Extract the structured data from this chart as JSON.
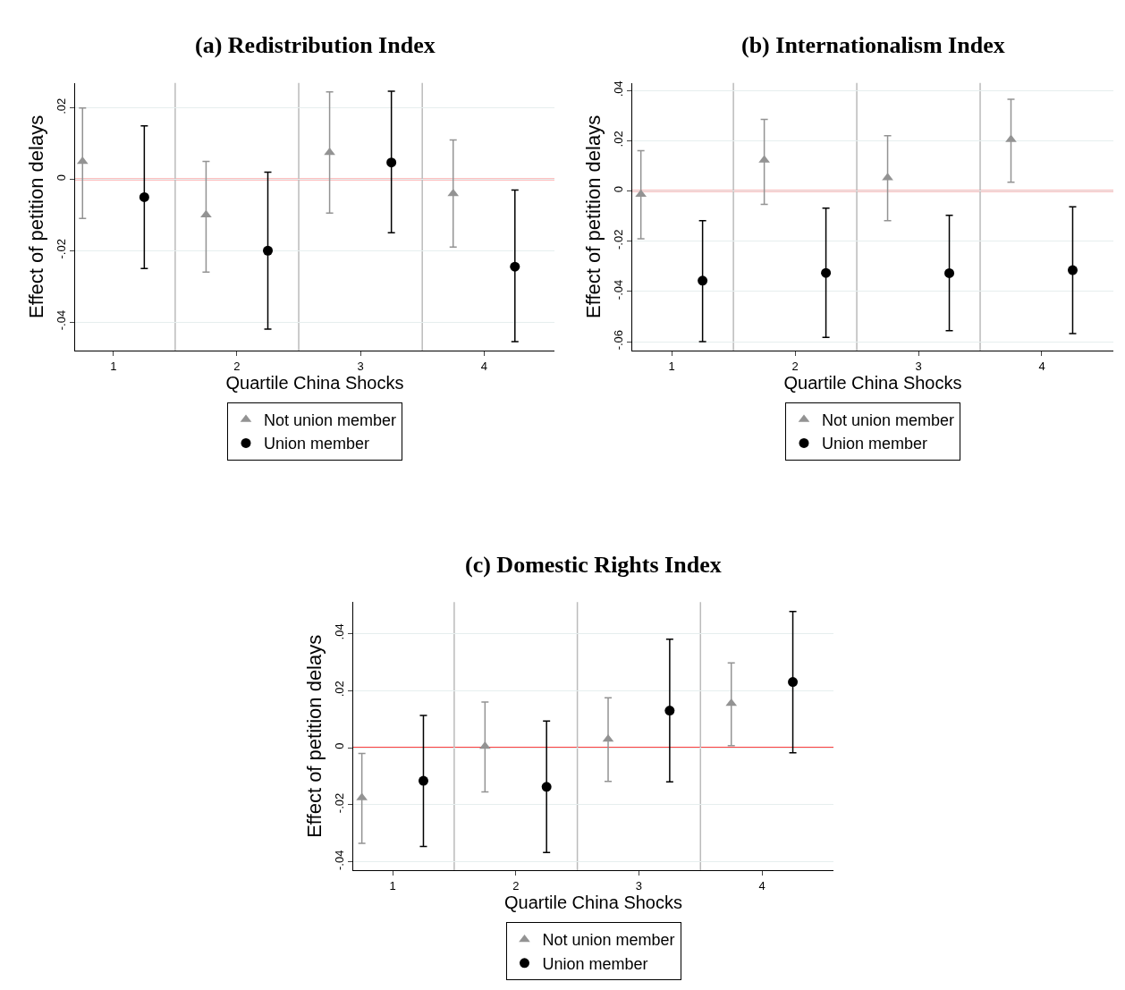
{
  "chart_data": [
    {
      "type": "scatter",
      "title": "(a) Redistribution Index",
      "xlabel": "Quartile China Shocks",
      "ylabel": "Effect of petition delays",
      "xlim": [
        0.69,
        4.57
      ],
      "xticks": [
        1,
        2,
        3,
        4
      ],
      "ylim": [
        -0.048,
        0.027
      ],
      "yticks": [
        {
          "value": -0.04,
          "label": "-.04"
        },
        {
          "value": -0.02,
          "label": "-.02"
        },
        {
          "value": 0,
          "label": "0"
        },
        {
          "value": 0.02,
          "label": ".02"
        }
      ],
      "grid": "y",
      "legend": "bottom",
      "ref_lines": [
        {
          "axis": "y",
          "value": 0,
          "color": "#ff0000"
        },
        {
          "axis": "x",
          "value": 1.5,
          "color": "#bbbbbb"
        },
        {
          "axis": "x",
          "value": 2.5,
          "color": "#bbbbbb"
        },
        {
          "axis": "x",
          "value": 3.5,
          "color": "#bbbbbb"
        }
      ],
      "series": [
        {
          "name": "Not union member",
          "color": "#939393",
          "marker": "triangle",
          "x": [
            0.75,
            1.75,
            2.75,
            3.75
          ],
          "values": [
            0.005,
            -0.01,
            0.0075,
            -0.004
          ],
          "errors": [
            [
              -0.011,
              0.02
            ],
            [
              -0.026,
              0.005
            ],
            [
              -0.0095,
              0.0245
            ],
            [
              -0.019,
              0.011
            ]
          ]
        },
        {
          "name": "Union member",
          "color": "#000000",
          "marker": "circle",
          "x": [
            1.25,
            2.25,
            3.25,
            4.25
          ],
          "values": [
            -0.005,
            -0.02,
            0.0047,
            -0.0245
          ],
          "errors": [
            [
              -0.025,
              0.015
            ],
            [
              -0.042,
              0.002
            ],
            [
              -0.015,
              0.0247
            ],
            [
              -0.0455,
              -0.003
            ]
          ]
        }
      ]
    },
    {
      "type": "scatter",
      "title": "(b) Internationalism Index",
      "xlabel": "Quartile China Shocks",
      "ylabel": "Effect of petition delays",
      "xlim": [
        0.68,
        4.58
      ],
      "xticks": [
        1,
        2,
        3,
        4
      ],
      "ylim": [
        -0.0635,
        0.043
      ],
      "yticks": [
        {
          "value": -0.06,
          "label": "-.06"
        },
        {
          "value": -0.04,
          "label": "-.04"
        },
        {
          "value": -0.02,
          "label": "-.02"
        },
        {
          "value": 0,
          "label": "0"
        },
        {
          "value": 0.02,
          "label": ".02"
        },
        {
          "value": 0.04,
          "label": ".04"
        }
      ],
      "grid": "y",
      "legend": "bottom",
      "ref_lines": [
        {
          "axis": "y",
          "value": 0,
          "color": "#ff0000"
        },
        {
          "axis": "x",
          "value": 1.5,
          "color": "#bbbbbb"
        },
        {
          "axis": "x",
          "value": 2.5,
          "color": "#bbbbbb"
        },
        {
          "axis": "x",
          "value": 3.5,
          "color": "#bbbbbb"
        }
      ],
      "series": [
        {
          "name": "Not union member",
          "color": "#939393",
          "marker": "triangle",
          "x": [
            0.75,
            1.75,
            2.75,
            3.75
          ],
          "values": [
            -0.0013,
            0.0123,
            0.0053,
            0.0205
          ],
          "errors": [
            [
              -0.019,
              0.016
            ],
            [
              -0.0053,
              0.0285
            ],
            [
              -0.0118,
              0.022
            ],
            [
              0.0035,
              0.0365
            ]
          ]
        },
        {
          "name": "Union member",
          "color": "#000000",
          "marker": "circle",
          "x": [
            1.25,
            2.25,
            3.25,
            4.25
          ],
          "values": [
            -0.0357,
            -0.0326,
            -0.0327,
            -0.0315
          ],
          "errors": [
            [
              -0.06,
              -0.0118
            ],
            [
              -0.0583,
              -0.0068
            ],
            [
              -0.0556,
              -0.0097
            ],
            [
              -0.0568,
              -0.0063
            ]
          ]
        }
      ]
    },
    {
      "type": "scatter",
      "title": "(c) Domestic Rights Index",
      "xlabel": "Quartile China Shocks",
      "ylabel": "Effect of petition delays",
      "xlim": [
        0.68,
        4.58
      ],
      "xticks": [
        1,
        2,
        3,
        4
      ],
      "ylim": [
        -0.043,
        0.051
      ],
      "yticks": [
        {
          "value": -0.04,
          "label": "-.04"
        },
        {
          "value": -0.02,
          "label": "-.02"
        },
        {
          "value": 0,
          "label": "0"
        },
        {
          "value": 0.02,
          "label": ".02"
        },
        {
          "value": 0.04,
          "label": ".04"
        }
      ],
      "grid": "y",
      "legend": "bottom",
      "ref_lines": [
        {
          "axis": "y",
          "value": 0,
          "color": "#ff0000"
        },
        {
          "axis": "x",
          "value": 1.5,
          "color": "#bbbbbb"
        },
        {
          "axis": "x",
          "value": 2.5,
          "color": "#bbbbbb"
        },
        {
          "axis": "x",
          "value": 3.5,
          "color": "#bbbbbb"
        }
      ],
      "series": [
        {
          "name": "Not union member",
          "color": "#939393",
          "marker": "triangle",
          "x": [
            0.75,
            1.75,
            2.75,
            3.75
          ],
          "values": [
            -0.0175,
            0.0005,
            0.003,
            0.0155
          ],
          "errors": [
            [
              -0.0335,
              -0.002
            ],
            [
              -0.0155,
              0.016
            ],
            [
              -0.0118,
              0.0175
            ],
            [
              0.0007,
              0.0297
            ]
          ]
        },
        {
          "name": "Union member",
          "color": "#000000",
          "marker": "circle",
          "x": [
            1.25,
            2.25,
            3.25,
            4.25
          ],
          "values": [
            -0.0116,
            -0.0137,
            0.013,
            0.023
          ],
          "errors": [
            [
              -0.0346,
              0.0113
            ],
            [
              -0.0367,
              0.0093
            ],
            [
              -0.012,
              0.038
            ],
            [
              -0.0018,
              0.0477
            ]
          ]
        }
      ]
    }
  ]
}
